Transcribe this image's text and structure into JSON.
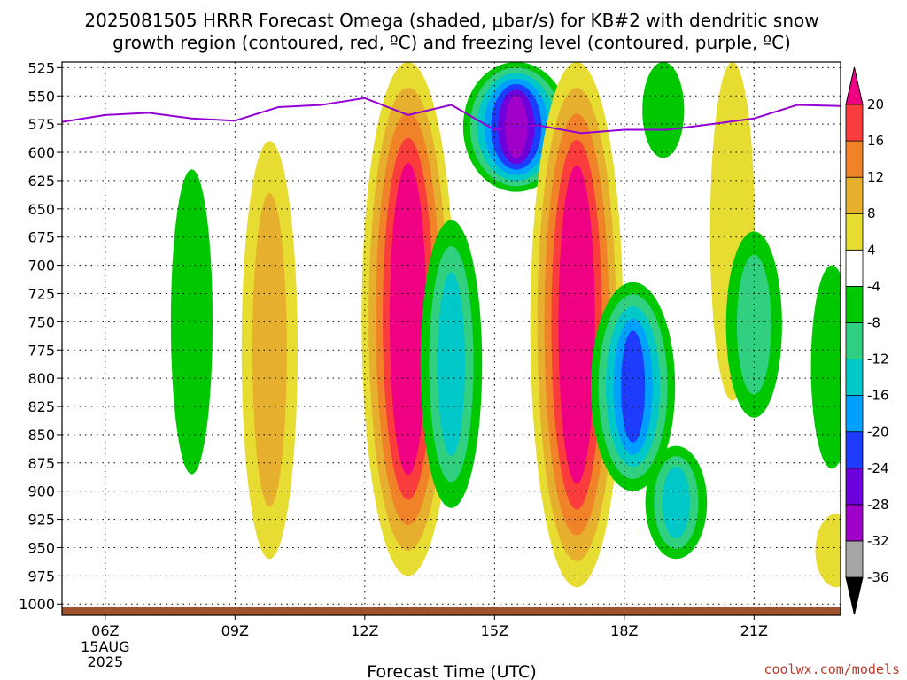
{
  "title_lines": [
    "2025081505 HRRR Forecast Omega (shaded, μbar/s) for KB#2 with dendritic snow",
    "growth region (contoured, red, ºC) and freezing level (contoured, purple, ºC)"
  ],
  "credit": "coolwx.com/models",
  "chart_data": {
    "type": "heatmap",
    "xlabel": "Forecast Time (UTC)",
    "ylabel": "",
    "x_range_hours": [
      5,
      23
    ],
    "y_range_hpa": [
      520,
      1010
    ],
    "y_ticks": [
      525,
      550,
      575,
      600,
      625,
      650,
      675,
      700,
      725,
      750,
      775,
      800,
      825,
      850,
      875,
      900,
      925,
      950,
      975,
      1000
    ],
    "x_ticks": [
      {
        "hour": 6,
        "label": "06Z",
        "sub": [
          "15AUG",
          "2025"
        ]
      },
      {
        "hour": 9,
        "label": "09Z"
      },
      {
        "hour": 12,
        "label": "12Z"
      },
      {
        "hour": 15,
        "label": "15Z"
      },
      {
        "hour": 18,
        "label": "18Z"
      },
      {
        "hour": 21,
        "label": "21Z"
      }
    ],
    "colorbar": {
      "levels": [
        -36,
        -32,
        -28,
        -24,
        -20,
        -16,
        -12,
        -8,
        -4,
        4,
        8,
        12,
        16,
        20
      ],
      "colors": [
        "#000000",
        "#a5a5a5",
        "#a000c8",
        "#6e00dc",
        "#1e3cff",
        "#00a0ff",
        "#00c8c8",
        "#30d080",
        "#00c800",
        "#ffffff",
        "#e6dc32",
        "#e6af2d",
        "#f08228",
        "#fa3c3c",
        "#f00082"
      ]
    },
    "freezing_level": {
      "color": "#9400d3",
      "points": [
        [
          5.0,
          573
        ],
        [
          5.5,
          570
        ],
        [
          6.0,
          567
        ],
        [
          7.0,
          565
        ],
        [
          8.0,
          570
        ],
        [
          9.0,
          572
        ],
        [
          10.0,
          560
        ],
        [
          11.0,
          558
        ],
        [
          12.0,
          552
        ],
        [
          13.0,
          567
        ],
        [
          14.0,
          558
        ],
        [
          15.0,
          580
        ],
        [
          15.5,
          577
        ],
        [
          16.0,
          576
        ],
        [
          17.0,
          583
        ],
        [
          18.0,
          580
        ],
        [
          19.0,
          580
        ],
        [
          20.0,
          575
        ],
        [
          21.0,
          570
        ],
        [
          22.0,
          558
        ],
        [
          23.0,
          559
        ]
      ]
    },
    "omega_features": [
      {
        "kind": "ascent",
        "center_hour": 8.0,
        "pressure_range": [
          615,
          885
        ],
        "peak": -6
      },
      {
        "kind": "descent",
        "center_hour": 9.8,
        "pressure_range": [
          590,
          960
        ],
        "peak": 11
      },
      {
        "kind": "descent",
        "center_hour": 13.0,
        "pressure_range": [
          520,
          975
        ],
        "peak": 24
      },
      {
        "kind": "ascent",
        "center_hour": 14.0,
        "pressure_range": [
          660,
          915
        ],
        "peak": -13
      },
      {
        "kind": "ascent",
        "center_hour": 15.5,
        "pressure_range": [
          520,
          635
        ],
        "peak": -30
      },
      {
        "kind": "descent",
        "center_hour": 16.9,
        "pressure_range": [
          520,
          985
        ],
        "peak": 24
      },
      {
        "kind": "ascent",
        "center_hour": 18.2,
        "pressure_range": [
          715,
          900
        ],
        "peak": -21
      },
      {
        "kind": "ascent",
        "center_hour": 19.2,
        "pressure_range": [
          860,
          960
        ],
        "peak": -13
      },
      {
        "kind": "ascent",
        "center_hour": 18.9,
        "pressure_range": [
          520,
          605
        ],
        "peak": -6
      },
      {
        "kind": "descent",
        "center_hour": 20.5,
        "pressure_range": [
          520,
          820
        ],
        "peak": 7
      },
      {
        "kind": "ascent",
        "center_hour": 21.0,
        "pressure_range": [
          670,
          835
        ],
        "peak": -11
      },
      {
        "kind": "ascent",
        "center_hour": 22.8,
        "pressure_range": [
          700,
          880
        ],
        "peak": -6
      },
      {
        "kind": "descent",
        "center_hour": 22.9,
        "pressure_range": [
          920,
          985
        ],
        "peak": 6
      }
    ]
  }
}
